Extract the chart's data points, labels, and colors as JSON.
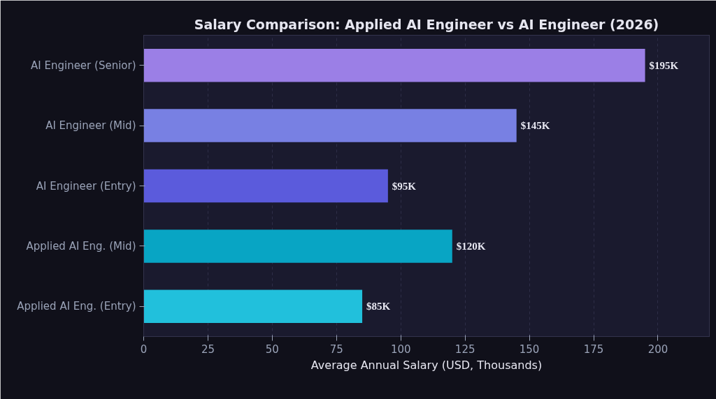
{
  "chart_data": {
    "type": "bar",
    "orientation": "horizontal",
    "title": "Salary Comparison: Applied AI Engineer vs AI Engineer (2026)",
    "xlabel": "Average Annual Salary (USD, Thousands)",
    "categories": [
      "AI Engineer (Senior)",
      "AI Engineer (Mid)",
      "AI Engineer (Entry)",
      "Applied AI Eng. (Mid)",
      "Applied AI Eng. (Entry)"
    ],
    "values": [
      195,
      145,
      95,
      120,
      85
    ],
    "colors": [
      "#9b7fe6",
      "#7880e3",
      "#5b5bdc",
      "#08a5c4",
      "#21c0dc"
    ],
    "value_labels": [
      "$195K",
      "$145K",
      "$95K",
      "$120K",
      "$85K"
    ],
    "xlim": [
      0,
      220
    ],
    "xticks": [
      0,
      25,
      50,
      75,
      100,
      125,
      150,
      175,
      200
    ],
    "grid": "x"
  }
}
